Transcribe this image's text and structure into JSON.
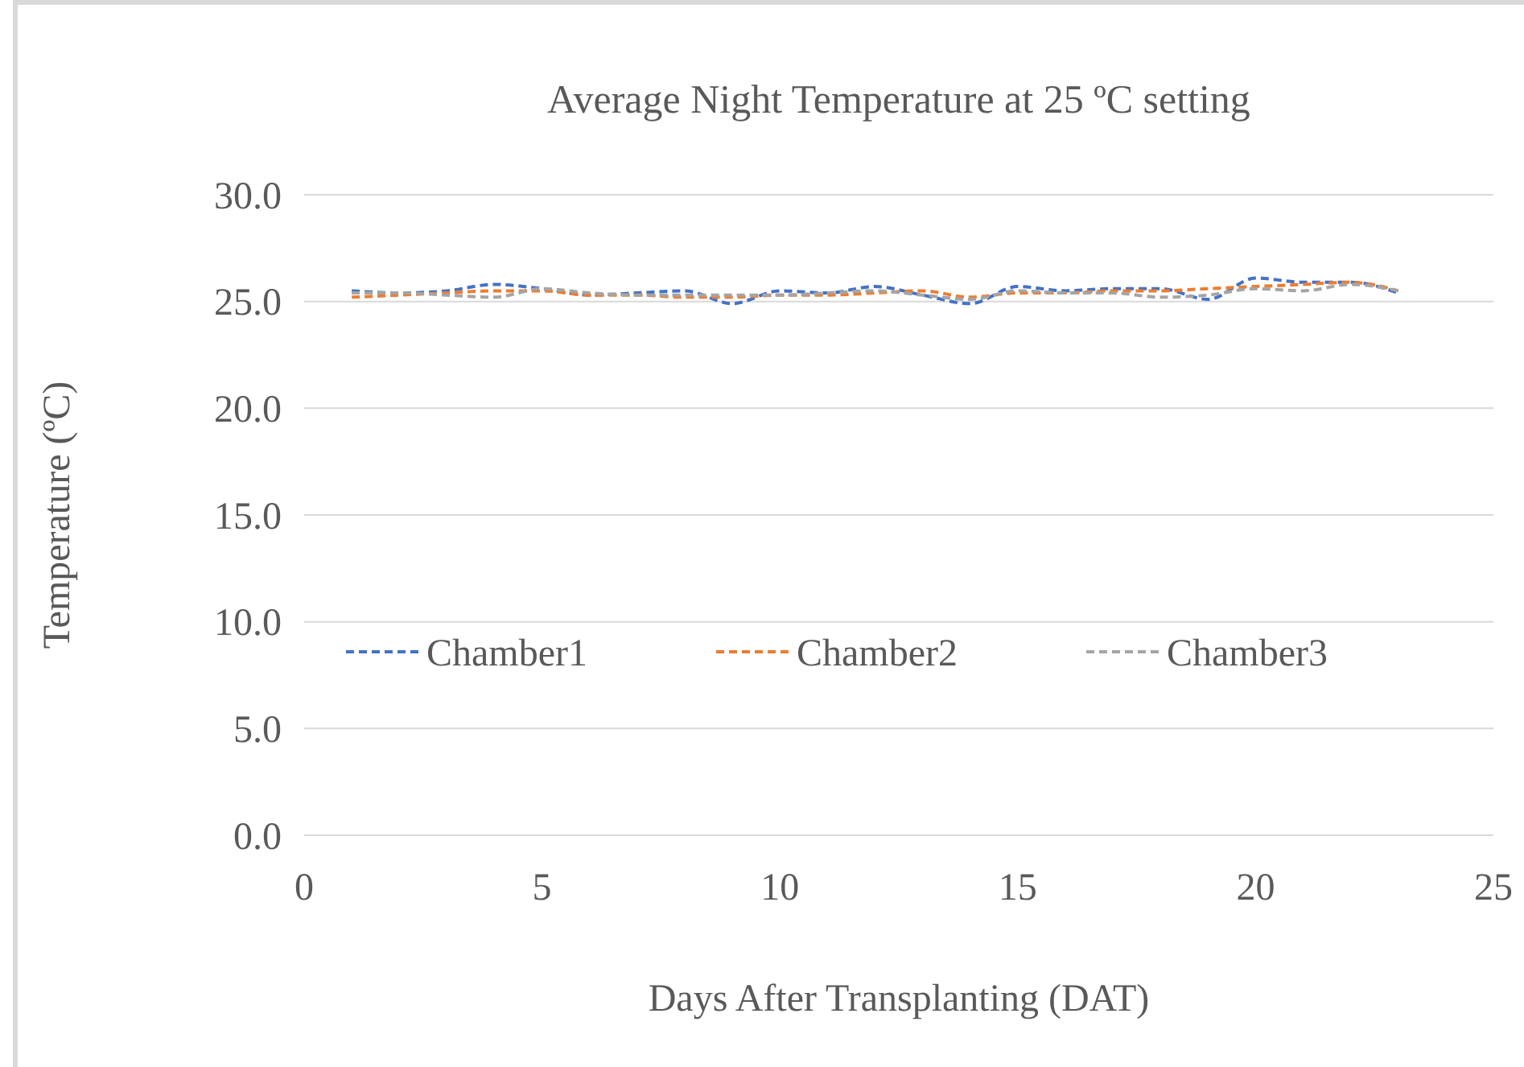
{
  "chart_data": {
    "type": "line",
    "title": "Average Night Temperature at 25 ºC setting",
    "xlabel": "Days After Transplanting (DAT)",
    "ylabel": "Temperature (ºC)",
    "x": [
      1,
      2,
      3,
      4,
      5,
      6,
      7,
      8,
      9,
      10,
      11,
      12,
      13,
      14,
      15,
      16,
      17,
      18,
      19,
      20,
      21,
      22,
      23
    ],
    "series": [
      {
        "name": "Chamber1",
        "color": "#4472c4",
        "values": [
          25.5,
          25.4,
          25.5,
          25.8,
          25.6,
          25.3,
          25.4,
          25.5,
          24.9,
          25.5,
          25.4,
          25.7,
          25.3,
          24.9,
          25.7,
          25.5,
          25.6,
          25.6,
          25.1,
          26.1,
          25.9,
          25.9,
          25.4
        ]
      },
      {
        "name": "Chamber2",
        "color": "#ed7d31",
        "values": [
          25.2,
          25.3,
          25.4,
          25.5,
          25.5,
          25.3,
          25.3,
          25.2,
          25.2,
          25.3,
          25.3,
          25.4,
          25.5,
          25.2,
          25.4,
          25.4,
          25.5,
          25.5,
          25.6,
          25.7,
          25.8,
          25.9,
          25.5
        ]
      },
      {
        "name": "Chamber3",
        "color": "#a5a5a5",
        "values": [
          25.4,
          25.4,
          25.3,
          25.2,
          25.6,
          25.4,
          25.3,
          25.3,
          25.3,
          25.3,
          25.4,
          25.5,
          25.3,
          25.1,
          25.5,
          25.4,
          25.4,
          25.2,
          25.3,
          25.6,
          25.5,
          25.8,
          25.5
        ]
      }
    ],
    "xlim": [
      0,
      25
    ],
    "xticks": [
      0,
      5,
      10,
      15,
      20,
      25
    ],
    "ylim": [
      0,
      30
    ],
    "yticks": [
      {
        "value": 0,
        "label": "0.0"
      },
      {
        "value": 5,
        "label": "5.0"
      },
      {
        "value": 10,
        "label": "10.0"
      },
      {
        "value": 15,
        "label": "15.0"
      },
      {
        "value": 20,
        "label": "20.0"
      },
      {
        "value": 25,
        "label": "25.0"
      },
      {
        "value": 30,
        "label": "30.0"
      }
    ],
    "grid": "y",
    "legend": "center",
    "line_style": "dashed",
    "marker": "none"
  }
}
